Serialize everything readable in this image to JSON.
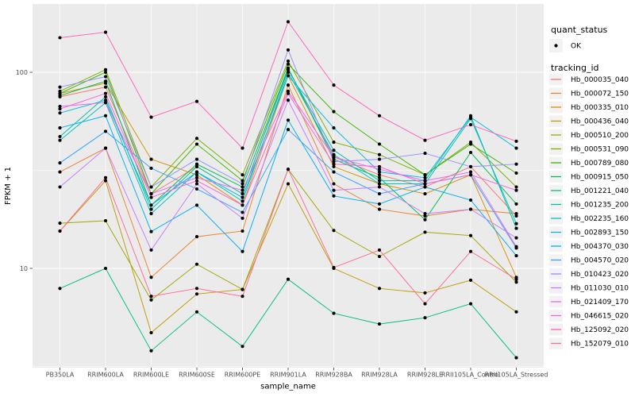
{
  "figure": {
    "background": "#FFFFFF",
    "panel_background": "#EBEBEB",
    "grid_color": "#FFFFFF",
    "tick_color": "#333333",
    "tick_label_color": "#4D4D4D",
    "point_color": "#000000",
    "legend_key_background": "#F2F2F2"
  },
  "chart_data": {
    "type": "line",
    "title": "",
    "xlabel": "sample_name",
    "ylabel": "FPKM + 1",
    "y_scale": "log10",
    "grid": true,
    "legend_position": "right",
    "y_ticks": [
      {
        "value": 100,
        "label": "100"
      },
      {
        "value": 10,
        "label": "10"
      }
    ],
    "y_minor_gridlines": [
      31.62,
      3.162
    ],
    "y_range_displayed": [
      3.1,
      223
    ],
    "categories": [
      "PB350LA",
      "RRIM600LA",
      "RRIM600LE",
      "RRIM600SE",
      "RRIM600PE",
      "RRIM901LA",
      "RRIM928BA",
      "RRIM928LA",
      "RRIM928LE",
      "RRII105LA_Control",
      "RRII105LA_Stressed"
    ],
    "legend": {
      "quant_status_title": "quant_status",
      "quant_status_entries": [
        {
          "label": "OK",
          "symbol": "black-point"
        }
      ],
      "tracking_id_title": "tracking_id"
    },
    "series": [
      {
        "id": "Hb_000035_040",
        "color": "#F8766D",
        "values": [
          75,
          84,
          24,
          33,
          24,
          105,
          37,
          30,
          26,
          33,
          18.5
        ]
      },
      {
        "id": "Hb_000072_150",
        "color": "#EA8331",
        "values": [
          31,
          41,
          9,
          14.5,
          15.5,
          86,
          27,
          20,
          18.5,
          20,
          19
        ]
      },
      {
        "id": "Hb_000335_010",
        "color": "#D89000",
        "values": [
          78,
          88,
          36,
          30,
          21,
          96,
          33,
          27,
          24,
          30,
          9
        ]
      },
      {
        "id": "Hb_000436_040",
        "color": "#C09B00",
        "values": [
          15.5,
          28,
          4.7,
          7.4,
          7.8,
          27,
          10,
          7.9,
          7.5,
          8.7,
          6
        ]
      },
      {
        "id": "Hb_000510_200",
        "color": "#A3A500",
        "values": [
          17,
          17.5,
          6.9,
          10.5,
          7.8,
          32,
          15.6,
          11.5,
          15.3,
          14.7,
          8.5
        ]
      },
      {
        "id": "Hb_000531_090",
        "color": "#7CAE00",
        "values": [
          80,
          103,
          26,
          46,
          30,
          114,
          44,
          38,
          30,
          44,
          26
        ]
      },
      {
        "id": "Hb_000789_080",
        "color": "#39B600",
        "values": [
          78,
          100,
          24,
          43,
          28,
          110,
          63,
          43,
          30,
          43,
          30.6
        ]
      },
      {
        "id": "Hb_000915_050",
        "color": "#00BB4E",
        "values": [
          76,
          90,
          21,
          34,
          26,
          105,
          36,
          29,
          17.7,
          39,
          21.3
        ]
      },
      {
        "id": "Hb_001221_040",
        "color": "#00BF7D",
        "values": [
          7.9,
          10,
          3.8,
          6,
          4,
          8.8,
          5.9,
          5.2,
          5.6,
          6.6,
          3.5
        ]
      },
      {
        "id": "Hb_001235_200",
        "color": "#00C1A3",
        "values": [
          47,
          75,
          20,
          33,
          24,
          103,
          40,
          28,
          28,
          60,
          16
        ]
      },
      {
        "id": "Hb_002235_160",
        "color": "#00BFC4",
        "values": [
          45,
          70,
          19,
          31,
          22,
          100,
          38,
          27,
          27,
          58,
          16.9
        ]
      },
      {
        "id": "Hb_002893_150",
        "color": "#00BAE0",
        "values": [
          62,
          72,
          21,
          31,
          23,
          96,
          52,
          31,
          29,
          59,
          41
        ]
      },
      {
        "id": "Hb_004370_030",
        "color": "#00B0F6",
        "values": [
          52,
          60,
          15.4,
          21,
          12.2,
          57,
          23.4,
          21.3,
          26,
          22.3,
          11.6
        ]
      },
      {
        "id": "Hb_004570_020",
        "color": "#35A2FF",
        "values": [
          34.5,
          50,
          32.4,
          25.4,
          19.3,
          51,
          31,
          24,
          27,
          30,
          12.7
        ]
      },
      {
        "id": "Hb_010423_020",
        "color": "#9590FF",
        "values": [
          84,
          95,
          26,
          36,
          27,
          130,
          35,
          36,
          38.6,
          33,
          34
        ]
      },
      {
        "id": "Hb_011030_010",
        "color": "#C77CFF",
        "values": [
          26,
          41,
          12.4,
          27,
          18,
          72,
          25,
          26,
          19,
          20,
          14.3
        ]
      },
      {
        "id": "Hb_021409_170",
        "color": "#E76BF3",
        "values": [
          67,
          70,
          24,
          29,
          25,
          80,
          37,
          32,
          28,
          31,
          12.9
        ]
      },
      {
        "id": "Hb_046615_020",
        "color": "#FA62DB",
        "values": [
          65,
          78,
          23,
          28,
          21,
          78,
          34,
          33,
          27,
          30,
          25
        ]
      },
      {
        "id": "Hb_125092_020",
        "color": "#FF62BC",
        "values": [
          150,
          160,
          59,
          71,
          41,
          181,
          86,
          60,
          45,
          54,
          44.5
        ]
      },
      {
        "id": "Hb_152079_010",
        "color": "#FF6A98",
        "values": [
          15.5,
          29,
          7.2,
          7.9,
          7.2,
          32,
          10.1,
          12.4,
          6.6,
          12.2,
          8.8
        ]
      }
    ]
  }
}
